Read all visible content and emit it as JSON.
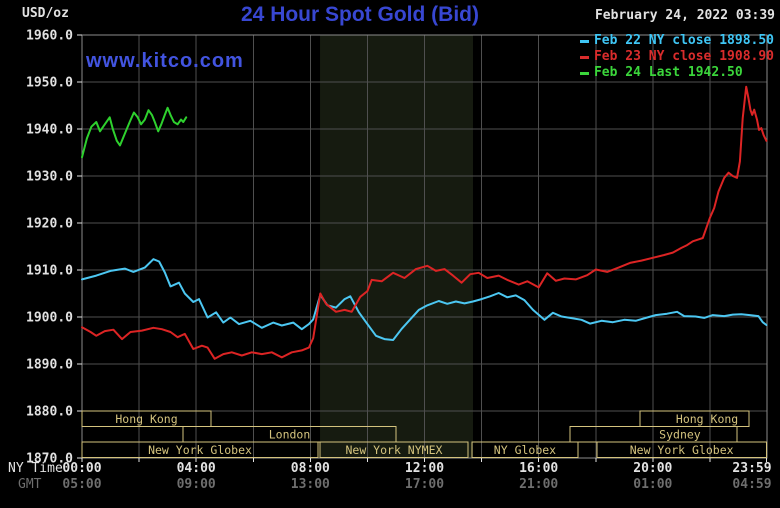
{
  "header": {
    "units_label": "USD/oz",
    "title": "24 Hour Spot Gold (Bid)",
    "datetime": "February 24, 2022 03:39",
    "watermark": "www.kitco.com"
  },
  "legend": [
    {
      "label": "Feb 22 NY close 1898.50",
      "color": "#3fc6f5"
    },
    {
      "label": "Feb 23 NY close 1908.90",
      "color": "#d92c2c"
    },
    {
      "label": "Feb 24 Last 1942.50",
      "color": "#3bd63b"
    }
  ],
  "axes": {
    "ny_time_label": "NY Time",
    "gmt_label": "GMT",
    "ny_tick_labels": [
      "00:00",
      "04:00",
      "08:00",
      "12:00",
      "16:00",
      "20:00",
      "23:59"
    ],
    "gmt_tick_labels": [
      "05:00",
      "09:00",
      "13:00",
      "17:00",
      "21:00",
      "01:00",
      "04:59"
    ],
    "tick_hours": [
      0,
      4,
      8,
      12,
      16,
      20,
      23.98
    ],
    "y_tick_labels": [
      "1960.0",
      "1950.0",
      "1940.0",
      "1930.0",
      "1920.0",
      "1910.0",
      "1900.0",
      "1890.0",
      "1880.0",
      "1870.0"
    ],
    "y_tick_values": [
      1960,
      1950,
      1940,
      1930,
      1920,
      1910,
      1900,
      1890,
      1880,
      1870
    ]
  },
  "colors": {
    "background": "#000000",
    "grid": "#4f4f4f",
    "frame": "#8c8c8c",
    "band": "#161b10",
    "session": "#d4c37e",
    "axis_text": "#e2e2e2",
    "gmt_text": "#6e6e6e"
  },
  "chart_data": {
    "type": "line",
    "title": "24 Hour Spot Gold (Bid)",
    "ylabel": "USD/oz",
    "ylim": [
      1870,
      1960
    ],
    "xlim_hours": [
      0,
      24
    ],
    "grid": {
      "x_step_hours": 2,
      "y_step": 10
    },
    "nymex_band_hours": [
      8.34,
      13.7
    ],
    "series": [
      {
        "name": "Feb 22 NY close",
        "close": 1898.5,
        "color": "#4cc7f2",
        "points": [
          [
            0,
            1908
          ],
          [
            0.5,
            1908.8
          ],
          [
            1,
            1909.8
          ],
          [
            1.5,
            1910.3
          ],
          [
            1.8,
            1909.6
          ],
          [
            2.2,
            1910.5
          ],
          [
            2.5,
            1912.3
          ],
          [
            2.7,
            1911.8
          ],
          [
            2.9,
            1909.5
          ],
          [
            3.1,
            1906.5
          ],
          [
            3.4,
            1907.3
          ],
          [
            3.6,
            1905
          ],
          [
            3.9,
            1903.2
          ],
          [
            4.1,
            1903.8
          ],
          [
            4.4,
            1899.9
          ],
          [
            4.7,
            1901
          ],
          [
            4.95,
            1898.8
          ],
          [
            5.2,
            1899.9
          ],
          [
            5.5,
            1898.5
          ],
          [
            5.9,
            1899.2
          ],
          [
            6.3,
            1897.7
          ],
          [
            6.7,
            1898.8
          ],
          [
            7,
            1898.2
          ],
          [
            7.4,
            1898.8
          ],
          [
            7.7,
            1897.4
          ],
          [
            7.95,
            1898.5
          ],
          [
            8.1,
            1899.5
          ],
          [
            8.35,
            1904.7
          ],
          [
            8.6,
            1902.5
          ],
          [
            8.9,
            1902
          ],
          [
            9.2,
            1903.8
          ],
          [
            9.4,
            1904.4
          ],
          [
            9.7,
            1901
          ],
          [
            10,
            1898.5
          ],
          [
            10.3,
            1896
          ],
          [
            10.6,
            1895.3
          ],
          [
            10.9,
            1895.1
          ],
          [
            11.2,
            1897.5
          ],
          [
            11.5,
            1899.5
          ],
          [
            11.8,
            1901.5
          ],
          [
            12.1,
            1902.5
          ],
          [
            12.5,
            1903.4
          ],
          [
            12.8,
            1902.8
          ],
          [
            13.1,
            1903.3
          ],
          [
            13.4,
            1902.9
          ],
          [
            13.7,
            1903.3
          ],
          [
            14,
            1903.8
          ],
          [
            14.3,
            1904.4
          ],
          [
            14.6,
            1905.1
          ],
          [
            14.9,
            1904.2
          ],
          [
            15.2,
            1904.6
          ],
          [
            15.5,
            1903.6
          ],
          [
            15.8,
            1901.5
          ],
          [
            16.2,
            1899.4
          ],
          [
            16.5,
            1900.9
          ],
          [
            16.8,
            1900.1
          ],
          [
            17.1,
            1899.8
          ],
          [
            17.5,
            1899.4
          ],
          [
            17.8,
            1898.6
          ],
          [
            18.2,
            1899.2
          ],
          [
            18.6,
            1898.9
          ],
          [
            19,
            1899.4
          ],
          [
            19.4,
            1899.2
          ],
          [
            19.8,
            1899.9
          ],
          [
            20.1,
            1900.4
          ],
          [
            20.5,
            1900.7
          ],
          [
            20.85,
            1901.1
          ],
          [
            21.1,
            1900.2
          ],
          [
            21.5,
            1900.1
          ],
          [
            21.8,
            1899.8
          ],
          [
            22.1,
            1900.4
          ],
          [
            22.5,
            1900.2
          ],
          [
            22.8,
            1900.5
          ],
          [
            23.1,
            1900.6
          ],
          [
            23.4,
            1900.4
          ],
          [
            23.7,
            1900.2
          ],
          [
            23.85,
            1898.9
          ],
          [
            23.98,
            1898.3
          ]
        ]
      },
      {
        "name": "Feb 23 NY close",
        "close": 1908.9,
        "color": "#dc2424",
        "points": [
          [
            0,
            1897.8
          ],
          [
            0.3,
            1896.8
          ],
          [
            0.5,
            1896
          ],
          [
            0.8,
            1897
          ],
          [
            1.1,
            1897.3
          ],
          [
            1.4,
            1895.3
          ],
          [
            1.7,
            1896.8
          ],
          [
            2.1,
            1897.1
          ],
          [
            2.5,
            1897.7
          ],
          [
            2.8,
            1897.4
          ],
          [
            3.1,
            1896.8
          ],
          [
            3.35,
            1895.7
          ],
          [
            3.6,
            1896.4
          ],
          [
            3.9,
            1893.2
          ],
          [
            4.2,
            1893.9
          ],
          [
            4.4,
            1893.5
          ],
          [
            4.65,
            1891.1
          ],
          [
            4.95,
            1892.1
          ],
          [
            5.25,
            1892.5
          ],
          [
            5.6,
            1891.8
          ],
          [
            5.95,
            1892.5
          ],
          [
            6.3,
            1892.1
          ],
          [
            6.65,
            1892.5
          ],
          [
            7,
            1891.4
          ],
          [
            7.35,
            1892.5
          ],
          [
            7.7,
            1892.9
          ],
          [
            7.95,
            1893.5
          ],
          [
            8.1,
            1895.5
          ],
          [
            8.35,
            1905
          ],
          [
            8.55,
            1902.8
          ],
          [
            8.9,
            1901.1
          ],
          [
            9.2,
            1901.5
          ],
          [
            9.45,
            1901.1
          ],
          [
            9.75,
            1904.3
          ],
          [
            10,
            1905.5
          ],
          [
            10.15,
            1907.9
          ],
          [
            10.5,
            1907.6
          ],
          [
            10.9,
            1909.4
          ],
          [
            11.3,
            1908.3
          ],
          [
            11.7,
            1910.2
          ],
          [
            12.1,
            1910.9
          ],
          [
            12.4,
            1909.8
          ],
          [
            12.7,
            1910.2
          ],
          [
            13,
            1908.8
          ],
          [
            13.3,
            1907.3
          ],
          [
            13.6,
            1909.1
          ],
          [
            13.9,
            1909.4
          ],
          [
            14.2,
            1908.3
          ],
          [
            14.6,
            1908.8
          ],
          [
            14.9,
            1907.9
          ],
          [
            15.3,
            1906.9
          ],
          [
            15.6,
            1907.6
          ],
          [
            16,
            1906.3
          ],
          [
            16.3,
            1909.3
          ],
          [
            16.6,
            1907.7
          ],
          [
            16.9,
            1908.2
          ],
          [
            17.3,
            1908
          ],
          [
            17.7,
            1908.9
          ],
          [
            18,
            1910.1
          ],
          [
            18.4,
            1909.6
          ],
          [
            18.8,
            1910.5
          ],
          [
            19.2,
            1911.5
          ],
          [
            19.6,
            1912
          ],
          [
            20,
            1912.6
          ],
          [
            20.4,
            1913.2
          ],
          [
            20.7,
            1913.7
          ],
          [
            21,
            1914.7
          ],
          [
            21.2,
            1915.3
          ],
          [
            21.4,
            1916.1
          ],
          [
            21.6,
            1916.5
          ],
          [
            21.75,
            1916.8
          ],
          [
            22,
            1921.1
          ],
          [
            22.15,
            1923.2
          ],
          [
            22.3,
            1926.7
          ],
          [
            22.5,
            1929.6
          ],
          [
            22.65,
            1930.7
          ],
          [
            22.8,
            1930
          ],
          [
            22.95,
            1929.6
          ],
          [
            23.05,
            1933.1
          ],
          [
            23.15,
            1942.3
          ],
          [
            23.27,
            1949
          ],
          [
            23.35,
            1946.6
          ],
          [
            23.42,
            1944.1
          ],
          [
            23.48,
            1943
          ],
          [
            23.55,
            1944.1
          ],
          [
            23.65,
            1942
          ],
          [
            23.72,
            1939.8
          ],
          [
            23.8,
            1940.2
          ],
          [
            23.88,
            1938.7
          ],
          [
            23.98,
            1937.5
          ]
        ]
      },
      {
        "name": "Feb 24 Last",
        "last": 1942.5,
        "color": "#2ed12e",
        "points": [
          [
            0,
            1934
          ],
          [
            0.17,
            1938
          ],
          [
            0.33,
            1940.5
          ],
          [
            0.5,
            1941.5
          ],
          [
            0.63,
            1939.5
          ],
          [
            0.8,
            1941
          ],
          [
            0.97,
            1942.5
          ],
          [
            1.08,
            1940
          ],
          [
            1.22,
            1937.5
          ],
          [
            1.33,
            1936.5
          ],
          [
            1.5,
            1939
          ],
          [
            1.67,
            1941.5
          ],
          [
            1.82,
            1943.5
          ],
          [
            1.95,
            1942.5
          ],
          [
            2.07,
            1941
          ],
          [
            2.2,
            1942
          ],
          [
            2.33,
            1944
          ],
          [
            2.45,
            1943
          ],
          [
            2.55,
            1941.5
          ],
          [
            2.67,
            1939.5
          ],
          [
            2.78,
            1941
          ],
          [
            2.9,
            1943
          ],
          [
            3.0,
            1944.5
          ],
          [
            3.1,
            1943
          ],
          [
            3.22,
            1941.5
          ],
          [
            3.35,
            1941
          ],
          [
            3.47,
            1942
          ],
          [
            3.55,
            1941.5
          ],
          [
            3.65,
            1942.5
          ]
        ]
      }
    ],
    "sessions": [
      {
        "row": 0,
        "label": "Hong Kong",
        "start_hour": 0,
        "end_hour": 4.52
      },
      {
        "row": 0,
        "label": "Hong Kong",
        "start_hour": 19.55,
        "end_hour": 23.37,
        "label_hour": 21.9
      },
      {
        "row": 1,
        "label": "London",
        "start_hour": 3.54,
        "end_hour": 11.0
      },
      {
        "row": 1,
        "label": "Sydney",
        "start_hour": 17.1,
        "end_hour": 22.95,
        "label_hour": 20.95
      },
      {
        "row": 2,
        "label": "New York Globex",
        "start_hour": 0,
        "end_hour": 8.27
      },
      {
        "row": 2,
        "label": "New York NYMEX",
        "start_hour": 8.34,
        "end_hour": 13.52
      },
      {
        "row": 2,
        "label": "NY Globex",
        "start_hour": 13.66,
        "end_hour": 17.38
      },
      {
        "row": 2,
        "label": "New York Globex",
        "start_hour": 18.04,
        "end_hour": 23.98
      }
    ]
  }
}
